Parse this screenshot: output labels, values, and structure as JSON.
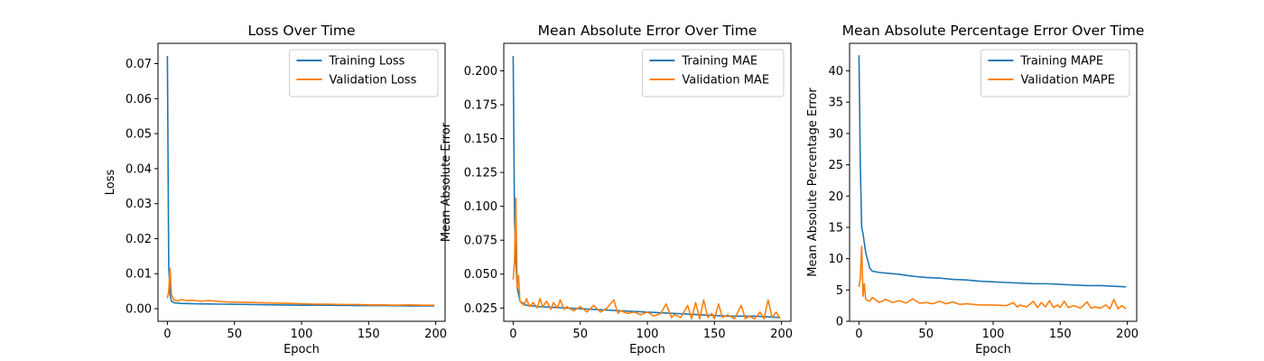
{
  "chart_data": [
    {
      "type": "line",
      "title": "Loss Over Time",
      "xlabel": "Epoch",
      "ylabel": "Loss",
      "xlim": [
        -7,
        207
      ],
      "ylim": [
        -0.0036,
        0.0758
      ],
      "xticks": [
        0,
        50,
        100,
        150,
        200
      ],
      "yticks": [
        0.0,
        0.01,
        0.02,
        0.03,
        0.04,
        0.05,
        0.06,
        0.07
      ],
      "ytick_labels": [
        "0.00",
        "0.01",
        "0.02",
        "0.03",
        "0.04",
        "0.05",
        "0.06",
        "0.07"
      ],
      "grid": false,
      "legend_position": "top-right",
      "series": [
        {
          "name": "Training Loss",
          "color": "#1f77b4",
          "points": [
            [
              0,
              0.0722
            ],
            [
              1,
              0.012
            ],
            [
              2,
              0.004
            ],
            [
              3,
              0.0022
            ],
            [
              5,
              0.0017
            ],
            [
              10,
              0.0015
            ],
            [
              20,
              0.0014
            ],
            [
              40,
              0.0013
            ],
            [
              60,
              0.0012
            ],
            [
              80,
              0.0011
            ],
            [
              100,
              0.001
            ],
            [
              120,
              0.001
            ],
            [
              140,
              0.0009
            ],
            [
              160,
              0.0009
            ],
            [
              180,
              0.0008
            ],
            [
              199,
              0.0008
            ]
          ]
        },
        {
          "name": "Validation Loss",
          "color": "#ff7f0e",
          "points": [
            [
              0,
              0.003
            ],
            [
              1,
              0.005
            ],
            [
              2,
              0.0115
            ],
            [
              3,
              0.004
            ],
            [
              5,
              0.0025
            ],
            [
              8,
              0.0022
            ],
            [
              10,
              0.0026
            ],
            [
              15,
              0.0023
            ],
            [
              20,
              0.0024
            ],
            [
              25,
              0.0021
            ],
            [
              30,
              0.0023
            ],
            [
              35,
              0.0022
            ],
            [
              40,
              0.002
            ],
            [
              50,
              0.0019
            ],
            [
              60,
              0.0018
            ],
            [
              70,
              0.0017
            ],
            [
              80,
              0.0016
            ],
            [
              90,
              0.0015
            ],
            [
              100,
              0.0014
            ],
            [
              110,
              0.0013
            ],
            [
              120,
              0.0013
            ],
            [
              130,
              0.0012
            ],
            [
              140,
              0.0012
            ],
            [
              150,
              0.0011
            ],
            [
              160,
              0.0011
            ],
            [
              170,
              0.001
            ],
            [
              180,
              0.0011
            ],
            [
              190,
              0.001
            ],
            [
              199,
              0.001
            ]
          ]
        }
      ]
    },
    {
      "type": "line",
      "title": "Mean Absolute Error Over Time",
      "xlabel": "Epoch",
      "ylabel": "Mean Absolute Error",
      "xlim": [
        -7,
        207
      ],
      "ylim": [
        0.0152,
        0.2203
      ],
      "xticks": [
        0,
        50,
        100,
        150,
        200
      ],
      "yticks": [
        0.025,
        0.05,
        0.075,
        0.1,
        0.125,
        0.15,
        0.175,
        0.2
      ],
      "ytick_labels": [
        "0.025",
        "0.050",
        "0.075",
        "0.100",
        "0.125",
        "0.150",
        "0.175",
        "0.200"
      ],
      "grid": false,
      "legend_position": "top-right",
      "series": [
        {
          "name": "Training MAE",
          "color": "#1f77b4",
          "points": [
            [
              0,
              0.211
            ],
            [
              1,
              0.09
            ],
            [
              2,
              0.06
            ],
            [
              3,
              0.04
            ],
            [
              5,
              0.03
            ],
            [
              10,
              0.027
            ],
            [
              20,
              0.026
            ],
            [
              40,
              0.025
            ],
            [
              60,
              0.024
            ],
            [
              80,
              0.023
            ],
            [
              100,
              0.022
            ],
            [
              120,
              0.021
            ],
            [
              140,
              0.02
            ],
            [
              160,
              0.019
            ],
            [
              180,
              0.019
            ],
            [
              199,
              0.018
            ]
          ]
        },
        {
          "name": "Validation MAE",
          "color": "#ff7f0e",
          "points": [
            [
              0,
              0.046
            ],
            [
              1,
              0.06
            ],
            [
              2,
              0.106
            ],
            [
              3,
              0.04
            ],
            [
              4,
              0.049
            ],
            [
              5,
              0.03
            ],
            [
              8,
              0.027
            ],
            [
              10,
              0.032
            ],
            [
              12,
              0.026
            ],
            [
              15,
              0.029
            ],
            [
              18,
              0.025
            ],
            [
              20,
              0.032
            ],
            [
              22,
              0.026
            ],
            [
              25,
              0.03
            ],
            [
              28,
              0.024
            ],
            [
              30,
              0.029
            ],
            [
              33,
              0.025
            ],
            [
              35,
              0.031
            ],
            [
              38,
              0.024
            ],
            [
              40,
              0.026
            ],
            [
              45,
              0.023
            ],
            [
              50,
              0.026
            ],
            [
              55,
              0.022
            ],
            [
              60,
              0.027
            ],
            [
              65,
              0.022
            ],
            [
              70,
              0.025
            ],
            [
              75,
              0.031
            ],
            [
              78,
              0.021
            ],
            [
              80,
              0.023
            ],
            [
              85,
              0.021
            ],
            [
              90,
              0.022
            ],
            [
              95,
              0.02
            ],
            [
              100,
              0.022
            ],
            [
              105,
              0.019
            ],
            [
              110,
              0.021
            ],
            [
              114,
              0.028
            ],
            [
              118,
              0.018
            ],
            [
              120,
              0.02
            ],
            [
              125,
              0.018
            ],
            [
              130,
              0.027
            ],
            [
              133,
              0.017
            ],
            [
              136,
              0.029
            ],
            [
              139,
              0.017
            ],
            [
              142,
              0.031
            ],
            [
              145,
              0.018
            ],
            [
              148,
              0.021
            ],
            [
              150,
              0.017
            ],
            [
              153,
              0.028
            ],
            [
              156,
              0.018
            ],
            [
              160,
              0.02
            ],
            [
              165,
              0.017
            ],
            [
              170,
              0.027
            ],
            [
              173,
              0.017
            ],
            [
              176,
              0.019
            ],
            [
              180,
              0.017
            ],
            [
              184,
              0.022
            ],
            [
              187,
              0.017
            ],
            [
              190,
              0.031
            ],
            [
              193,
              0.018
            ],
            [
              196,
              0.022
            ],
            [
              199,
              0.017
            ]
          ]
        }
      ]
    },
    {
      "type": "line",
      "title": "Mean Absolute Percentage Error Over Time",
      "xlabel": "Epoch",
      "ylabel": "Mean Absolute Percentage Error",
      "xlim": [
        -7,
        207
      ],
      "ylim": [
        0.0,
        44.4
      ],
      "xticks": [
        0,
        50,
        100,
        150,
        200
      ],
      "yticks": [
        0,
        5,
        10,
        15,
        20,
        25,
        30,
        35,
        40
      ],
      "ytick_labels": [
        "0",
        "5",
        "10",
        "15",
        "20",
        "25",
        "30",
        "35",
        "40"
      ],
      "grid": false,
      "legend_position": "top-right",
      "series": [
        {
          "name": "Training MAPE",
          "color": "#1f77b4",
          "points": [
            [
              0,
              42.5
            ],
            [
              1,
              25.0
            ],
            [
              2,
              15.0
            ],
            [
              3,
              14.0
            ],
            [
              5,
              11.0
            ],
            [
              8,
              8.5
            ],
            [
              10,
              8.0
            ],
            [
              15,
              7.8
            ],
            [
              20,
              7.7
            ],
            [
              30,
              7.5
            ],
            [
              40,
              7.2
            ],
            [
              50,
              7.0
            ],
            [
              60,
              6.9
            ],
            [
              70,
              6.7
            ],
            [
              80,
              6.6
            ],
            [
              90,
              6.4
            ],
            [
              100,
              6.3
            ],
            [
              110,
              6.2
            ],
            [
              120,
              6.1
            ],
            [
              130,
              6.0
            ],
            [
              140,
              6.0
            ],
            [
              150,
              5.9
            ],
            [
              160,
              5.8
            ],
            [
              170,
              5.7
            ],
            [
              180,
              5.7
            ],
            [
              190,
              5.6
            ],
            [
              199,
              5.5
            ]
          ]
        },
        {
          "name": "Validation MAPE",
          "color": "#ff7f0e",
          "points": [
            [
              0,
              5.5
            ],
            [
              1,
              7.0
            ],
            [
              2,
              12.0
            ],
            [
              3,
              4.0
            ],
            [
              4,
              6.0
            ],
            [
              5,
              3.5
            ],
            [
              8,
              3.2
            ],
            [
              10,
              3.8
            ],
            [
              15,
              3.0
            ],
            [
              20,
              3.5
            ],
            [
              25,
              3.0
            ],
            [
              30,
              3.3
            ],
            [
              35,
              2.9
            ],
            [
              40,
              3.6
            ],
            [
              45,
              2.9
            ],
            [
              50,
              3.0
            ],
            [
              55,
              2.8
            ],
            [
              60,
              3.2
            ],
            [
              65,
              2.8
            ],
            [
              70,
              3.1
            ],
            [
              75,
              2.7
            ],
            [
              80,
              2.8
            ],
            [
              90,
              2.6
            ],
            [
              100,
              2.6
            ],
            [
              110,
              2.5
            ],
            [
              115,
              3.0
            ],
            [
              118,
              2.3
            ],
            [
              120,
              2.6
            ],
            [
              125,
              2.3
            ],
            [
              130,
              3.2
            ],
            [
              133,
              2.2
            ],
            [
              136,
              3.0
            ],
            [
              139,
              2.3
            ],
            [
              142,
              3.3
            ],
            [
              145,
              2.2
            ],
            [
              148,
              2.6
            ],
            [
              150,
              2.2
            ],
            [
              153,
              3.2
            ],
            [
              156,
              2.2
            ],
            [
              160,
              2.5
            ],
            [
              165,
              2.1
            ],
            [
              170,
              3.1
            ],
            [
              173,
              2.1
            ],
            [
              176,
              2.3
            ],
            [
              180,
              2.1
            ],
            [
              184,
              2.6
            ],
            [
              187,
              2.0
            ],
            [
              190,
              3.5
            ],
            [
              193,
              2.0
            ],
            [
              196,
              2.5
            ],
            [
              199,
              2.0
            ]
          ]
        }
      ]
    }
  ]
}
